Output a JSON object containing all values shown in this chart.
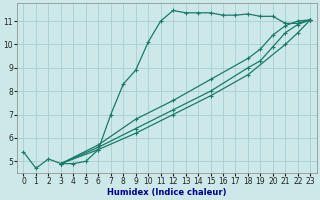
{
  "xlabel": "Humidex (Indice chaleur)",
  "ylabel": "",
  "bg_color": "#cce8e8",
  "grid_color": "#aacece",
  "line_color": "#1a7a6a",
  "xlim": [
    -0.5,
    23.5
  ],
  "ylim": [
    4.5,
    11.75
  ],
  "xticks": [
    0,
    1,
    2,
    3,
    4,
    5,
    6,
    7,
    8,
    9,
    10,
    11,
    12,
    13,
    14,
    15,
    16,
    17,
    18,
    19,
    20,
    21,
    22,
    23
  ],
  "yticks": [
    5,
    6,
    7,
    8,
    9,
    10,
    11
  ],
  "lines": [
    {
      "x": [
        0,
        1,
        2,
        3,
        4,
        5,
        6,
        7,
        8,
        9,
        10,
        11,
        12,
        13,
        14,
        15,
        16,
        17,
        18,
        19,
        20,
        21,
        22,
        23
      ],
      "y": [
        5.4,
        4.7,
        5.1,
        4.9,
        4.9,
        5.0,
        5.5,
        7.0,
        8.3,
        8.9,
        10.1,
        11.0,
        11.45,
        11.35,
        11.35,
        11.35,
        11.25,
        11.25,
        11.3,
        11.2,
        11.2,
        10.9,
        10.9,
        11.05
      ]
    },
    {
      "x": [
        3,
        6,
        9,
        12,
        15,
        18,
        21,
        22,
        23
      ],
      "y": [
        4.9,
        5.5,
        6.2,
        7.0,
        7.8,
        8.7,
        10.0,
        10.5,
        11.05
      ]
    },
    {
      "x": [
        3,
        6,
        9,
        12,
        15,
        18,
        19,
        20,
        21,
        22,
        23
      ],
      "y": [
        4.9,
        5.6,
        6.4,
        7.2,
        8.0,
        9.0,
        9.3,
        9.9,
        10.5,
        10.85,
        11.05
      ]
    },
    {
      "x": [
        3,
        6,
        9,
        12,
        15,
        18,
        19,
        20,
        21,
        22,
        23
      ],
      "y": [
        4.9,
        5.7,
        6.8,
        7.6,
        8.5,
        9.4,
        9.8,
        10.4,
        10.8,
        11.0,
        11.05
      ]
    }
  ]
}
